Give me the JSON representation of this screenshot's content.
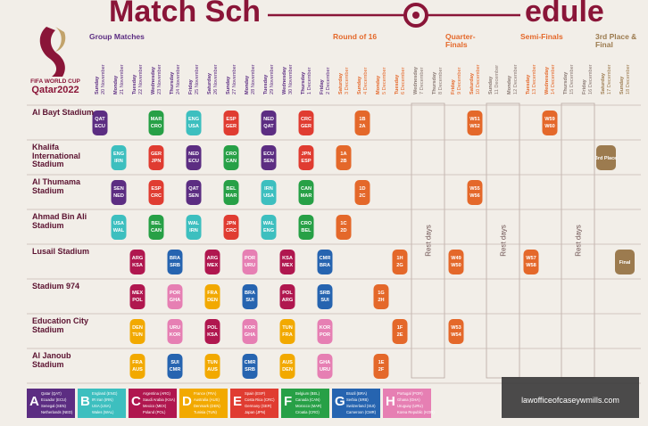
{
  "header": {
    "title_parts": [
      "Match Sch",
      "edule"
    ],
    "logo_line1": "FIFA WORLD CUP",
    "logo_line2": "Qatar2022"
  },
  "columns": [
    {
      "name": "Group Matches",
      "color": "#5c2d82",
      "days": [
        {
          "weekday": "Sunday",
          "date": "20 November"
        },
        {
          "weekday": "Monday",
          "date": "21 November"
        },
        {
          "weekday": "Tuesday",
          "date": "22 November"
        },
        {
          "weekday": "Wednesday",
          "date": "23 November"
        },
        {
          "weekday": "Thursday",
          "date": "24 November"
        },
        {
          "weekday": "Friday",
          "date": "25 November"
        },
        {
          "weekday": "Saturday",
          "date": "26 November"
        },
        {
          "weekday": "Sunday",
          "date": "27 November"
        },
        {
          "weekday": "Monday",
          "date": "28 November"
        },
        {
          "weekday": "Tuesday",
          "date": "29 November"
        },
        {
          "weekday": "Wednesday",
          "date": "30 November"
        },
        {
          "weekday": "Thursday",
          "date": "1 December"
        },
        {
          "weekday": "Friday",
          "date": "2 December"
        }
      ]
    },
    {
      "name": "Round of 16",
      "color": "#e4682a",
      "days": [
        {
          "weekday": "Saturday",
          "date": "3 December"
        },
        {
          "weekday": "Sunday",
          "date": "4 December"
        },
        {
          "weekday": "Monday",
          "date": "5 December"
        },
        {
          "weekday": "Tuesday",
          "date": "6 December"
        }
      ]
    },
    {
      "rest": "Rest days",
      "color": "#8a7a74",
      "days": [
        {
          "weekday": "Wednesday",
          "date": "7 December"
        },
        {
          "weekday": "Thursday",
          "date": "8 December"
        }
      ]
    },
    {
      "name": "Quarter-Finals",
      "color": "#e4682a",
      "days": [
        {
          "weekday": "Friday",
          "date": "9 December"
        },
        {
          "weekday": "Saturday",
          "date": "10 December"
        }
      ]
    },
    {
      "rest": "Rest days",
      "color": "#8a7a74",
      "days": [
        {
          "weekday": "Sunday",
          "date": "11 December"
        },
        {
          "weekday": "Monday",
          "date": "12 December"
        }
      ]
    },
    {
      "name": "Semi-Finals",
      "color": "#e4682a",
      "days": [
        {
          "weekday": "Tuesday",
          "date": "13 December"
        },
        {
          "weekday": "Wednesday",
          "date": "14 December"
        }
      ]
    },
    {
      "rest": "Rest days",
      "color": "#8a7a74",
      "days": [
        {
          "weekday": "Thursday",
          "date": "15 December"
        },
        {
          "weekday": "Friday",
          "date": "16 December"
        }
      ]
    },
    {
      "name": "3rd Place & Final",
      "color": "#9c7b4f",
      "days": [
        {
          "weekday": "Saturday",
          "date": "17 December"
        },
        {
          "weekday": "Sunday",
          "date": "18 December"
        }
      ]
    }
  ],
  "stadiums": [
    {
      "name": "Al Bayt Stadium",
      "matches": [
        {
          "date": "20 November",
          "group": "A",
          "teams": [
            "QAT",
            "ECU"
          ]
        },
        {
          "date": "23 November",
          "group": "F",
          "teams": [
            "MAR",
            "CRO"
          ]
        },
        {
          "date": "25 November",
          "group": "B",
          "teams": [
            "ENG",
            "USA"
          ]
        },
        {
          "date": "27 November",
          "group": "E",
          "teams": [
            "ESP",
            "GER"
          ]
        },
        {
          "date": "29 November",
          "group": "A",
          "teams": [
            "NED",
            "QAT"
          ]
        },
        {
          "date": "1 December",
          "group": "E",
          "teams": [
            "CRC",
            "GER"
          ]
        },
        {
          "date": "4 December",
          "teams": [
            "1B",
            "2A"
          ]
        },
        {
          "date": "10 December",
          "teams": [
            "W51",
            "W52"
          ]
        },
        {
          "date": "14 December",
          "teams": [
            "W59",
            "W60"
          ]
        }
      ]
    },
    {
      "name": "Khalifa International Stadium",
      "matches": [
        {
          "date": "21 November",
          "group": "B",
          "teams": [
            "ENG",
            "IRN"
          ]
        },
        {
          "date": "23 November",
          "group": "E",
          "teams": [
            "GER",
            "JPN"
          ]
        },
        {
          "date": "25 November",
          "group": "A",
          "teams": [
            "NED",
            "ECU"
          ]
        },
        {
          "date": "27 November",
          "group": "F",
          "teams": [
            "CRO",
            "CAN"
          ]
        },
        {
          "date": "29 November",
          "group": "A",
          "teams": [
            "ECU",
            "SEN"
          ]
        },
        {
          "date": "1 December",
          "group": "E",
          "teams": [
            "JPN",
            "ESP"
          ]
        },
        {
          "date": "3 December",
          "teams": [
            "1A",
            "2B"
          ]
        },
        {
          "date": "17 December",
          "teams": [
            "3rd Place"
          ]
        }
      ]
    },
    {
      "name": "Al Thumama Stadium",
      "matches": [
        {
          "date": "21 November",
          "group": "A",
          "teams": [
            "SEN",
            "NED"
          ]
        },
        {
          "date": "23 November",
          "group": "E",
          "teams": [
            "ESP",
            "CRC"
          ]
        },
        {
          "date": "25 November",
          "group": "A",
          "teams": [
            "QAT",
            "SEN"
          ]
        },
        {
          "date": "27 November",
          "group": "F",
          "teams": [
            "BEL",
            "MAR"
          ]
        },
        {
          "date": "29 November",
          "group": "B",
          "teams": [
            "IRN",
            "USA"
          ]
        },
        {
          "date": "1 December",
          "group": "F",
          "teams": [
            "CAN",
            "MAR"
          ]
        },
        {
          "date": "4 December",
          "teams": [
            "1D",
            "2C"
          ]
        },
        {
          "date": "10 December",
          "teams": [
            "W55",
            "W56"
          ]
        }
      ]
    },
    {
      "name": "Ahmad Bin Ali Stadium",
      "matches": [
        {
          "date": "21 November",
          "group": "B",
          "teams": [
            "USA",
            "WAL"
          ]
        },
        {
          "date": "23 November",
          "group": "F",
          "teams": [
            "BEL",
            "CAN"
          ]
        },
        {
          "date": "25 November",
          "group": "B",
          "teams": [
            "WAL",
            "IRN"
          ]
        },
        {
          "date": "27 November",
          "group": "E",
          "teams": [
            "JPN",
            "CRC"
          ]
        },
        {
          "date": "29 November",
          "group": "B",
          "teams": [
            "WAL",
            "ENG"
          ]
        },
        {
          "date": "1 December",
          "group": "F",
          "teams": [
            "CRO",
            "BEL"
          ]
        },
        {
          "date": "3 December",
          "teams": [
            "1C",
            "2D"
          ]
        }
      ]
    },
    {
      "name": "Lusail Stadium",
      "matches": [
        {
          "date": "22 November",
          "group": "C",
          "teams": [
            "ARG",
            "KSA"
          ]
        },
        {
          "date": "24 November",
          "group": "G",
          "teams": [
            "BRA",
            "SRB"
          ]
        },
        {
          "date": "26 November",
          "group": "C",
          "teams": [
            "ARG",
            "MEX"
          ]
        },
        {
          "date": "28 November",
          "group": "H",
          "teams": [
            "POR",
            "URU"
          ]
        },
        {
          "date": "30 November",
          "group": "C",
          "teams": [
            "KSA",
            "MEX"
          ]
        },
        {
          "date": "2 December",
          "group": "G",
          "teams": [
            "CMR",
            "BRA"
          ]
        },
        {
          "date": "6 December",
          "teams": [
            "1H",
            "2G"
          ]
        },
        {
          "date": "9 December",
          "teams": [
            "W49",
            "W50"
          ]
        },
        {
          "date": "13 December",
          "teams": [
            "W57",
            "W58"
          ]
        },
        {
          "date": "18 December",
          "teams": [
            "Final"
          ]
        }
      ]
    },
    {
      "name": "Stadium 974",
      "matches": [
        {
          "date": "22 November",
          "group": "C",
          "teams": [
            "MEX",
            "POL"
          ]
        },
        {
          "date": "24 November",
          "group": "H",
          "teams": [
            "POR",
            "GHA"
          ]
        },
        {
          "date": "26 November",
          "group": "D",
          "teams": [
            "FRA",
            "DEN"
          ]
        },
        {
          "date": "28 November",
          "group": "G",
          "teams": [
            "BRA",
            "SUI"
          ]
        },
        {
          "date": "30 November",
          "group": "C",
          "teams": [
            "POL",
            "ARG"
          ]
        },
        {
          "date": "2 December",
          "group": "G",
          "teams": [
            "SRB",
            "SUI"
          ]
        },
        {
          "date": "5 December",
          "teams": [
            "1G",
            "2H"
          ]
        }
      ]
    },
    {
      "name": "Education City Stadium",
      "matches": [
        {
          "date": "22 November",
          "group": "D",
          "teams": [
            "DEN",
            "TUN"
          ]
        },
        {
          "date": "24 November",
          "group": "H",
          "teams": [
            "URU",
            "KOR"
          ]
        },
        {
          "date": "26 November",
          "group": "C",
          "teams": [
            "POL",
            "KSA"
          ]
        },
        {
          "date": "28 November",
          "group": "H",
          "teams": [
            "KOR",
            "GHA"
          ]
        },
        {
          "date": "30 November",
          "group": "D",
          "teams": [
            "TUN",
            "FRA"
          ]
        },
        {
          "date": "2 December",
          "group": "H",
          "teams": [
            "KOR",
            "POR"
          ]
        },
        {
          "date": "6 December",
          "teams": [
            "1F",
            "2E"
          ]
        },
        {
          "date": "9 December",
          "teams": [
            "W53",
            "W54"
          ]
        }
      ]
    },
    {
      "name": "Al Janoub Stadium",
      "matches": [
        {
          "date": "22 November",
          "group": "D",
          "teams": [
            "FRA",
            "AUS"
          ]
        },
        {
          "date": "24 November",
          "group": "G",
          "teams": [
            "SUI",
            "CMR"
          ]
        },
        {
          "date": "26 November",
          "group": "D",
          "teams": [
            "TUN",
            "AUS"
          ]
        },
        {
          "date": "28 November",
          "group": "G",
          "teams": [
            "CMR",
            "SRB"
          ]
        },
        {
          "date": "30 November",
          "group": "D",
          "teams": [
            "AUS",
            "DEN"
          ]
        },
        {
          "date": "2 December",
          "group": "H",
          "teams": [
            "GHA",
            "URU"
          ]
        },
        {
          "date": "5 December",
          "teams": [
            "1E",
            "2F"
          ]
        }
      ]
    }
  ],
  "groups": [
    {
      "letter": "A",
      "color": "#5c2d82",
      "teams": [
        "Qatar (QAT)",
        "Ecuador (ECU)",
        "Senegal (SEN)",
        "Netherlands (NED)"
      ]
    },
    {
      "letter": "B",
      "color": "#3dbfbf",
      "teams": [
        "England (ENG)",
        "IR Iran (IRN)",
        "USA (USA)",
        "Wales (WAL)"
      ]
    },
    {
      "letter": "C",
      "color": "#b0174f",
      "teams": [
        "Argentina (ARG)",
        "Saudi Arabia (KSA)",
        "Mexico (MEX)",
        "Poland (POL)"
      ]
    },
    {
      "letter": "D",
      "color": "#f2a900",
      "teams": [
        "France (FRA)",
        "Australia (AUS)",
        "Denmark (DEN)",
        "Tunisia (TUN)"
      ]
    },
    {
      "letter": "E",
      "color": "#e03c31",
      "teams": [
        "Spain (ESP)",
        "Costa Rica (CRC)",
        "Germany (GER)",
        "Japan (JPN)"
      ]
    },
    {
      "letter": "F",
      "color": "#27a046",
      "teams": [
        "Belgium (BEL)",
        "Canada (CAN)",
        "Morocco (MAR)",
        "Croatia (CRO)"
      ]
    },
    {
      "letter": "G",
      "color": "#2664b0",
      "teams": [
        "Brazil (BRA)",
        "Serbia (SRB)",
        "Switzerland (SUI)",
        "Cameroon (CMR)"
      ]
    },
    {
      "letter": "H",
      "color": "#e67fb3",
      "teams": [
        "Portugal (POR)",
        "Ghana (GHA)",
        "Uruguay (URU)",
        "Korea Republic (KOR)"
      ]
    }
  ],
  "watermark": "lawofficeofcaseywmills.com"
}
